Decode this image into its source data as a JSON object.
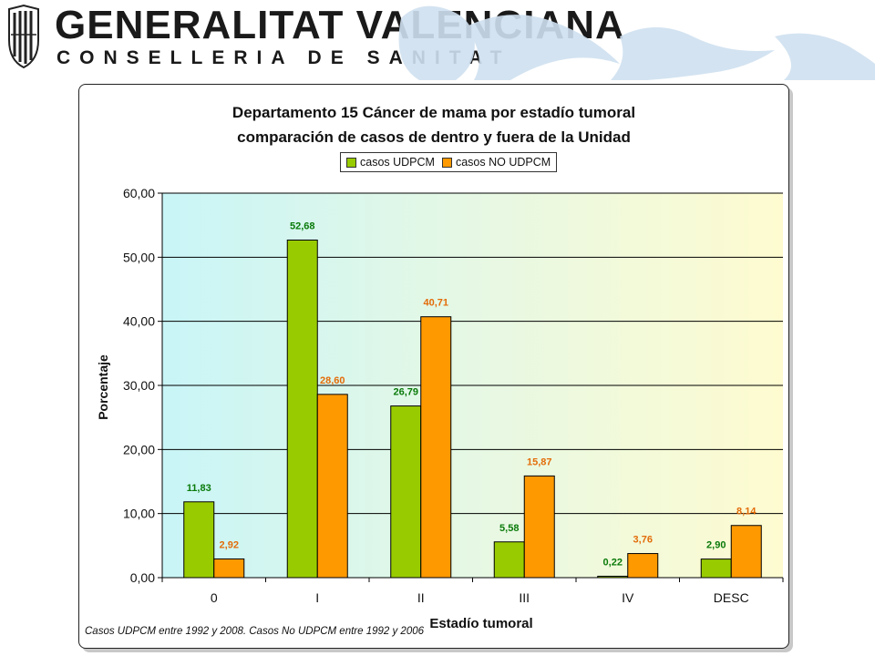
{
  "header": {
    "org_name": "GENERALITAT VALENCIANA",
    "department": "CONSELLERIA DE SANITAT"
  },
  "colors": {
    "udpcm": "#99cc00",
    "no_udpcm": "#ff9900",
    "udpcm_label": "#0a7a0a",
    "no_udpcm_label": "#e36c09"
  },
  "chart_data": {
    "type": "bar",
    "title": "Departamento 15 Cáncer de mama por estadío tumoral",
    "subtitle": "comparación de casos de dentro y fuera de la Unidad",
    "xlabel": "Estadío tumoral",
    "ylabel": "Porcentaje",
    "categories": [
      "0",
      "I",
      "II",
      "III",
      "IV",
      "DESC"
    ],
    "series": [
      {
        "name": "casos UDPCM",
        "values": [
          11.83,
          52.68,
          26.79,
          5.58,
          0.22,
          2.9
        ],
        "labels": [
          "11,83",
          "52,68",
          "26,79",
          "5,58",
          "0,22",
          "2,90"
        ]
      },
      {
        "name": "casos NO UDPCM",
        "values": [
          2.92,
          28.6,
          40.71,
          15.87,
          3.76,
          8.14
        ],
        "labels": [
          "2,92",
          "28,60",
          "40,71",
          "15,87",
          "3,76",
          "8,14"
        ]
      }
    ],
    "ylim": [
      0,
      60
    ],
    "yticks": [
      0,
      10,
      20,
      30,
      40,
      50,
      60
    ],
    "ytick_labels": [
      "0,00",
      "10,00",
      "20,00",
      "30,00",
      "40,00",
      "50,00",
      "60,00"
    ],
    "grid": true,
    "legend_position": "top"
  },
  "footnote": "Casos UDPCM entre 1992 y 2008.   Casos No UDPCM entre 1992 y 2006"
}
